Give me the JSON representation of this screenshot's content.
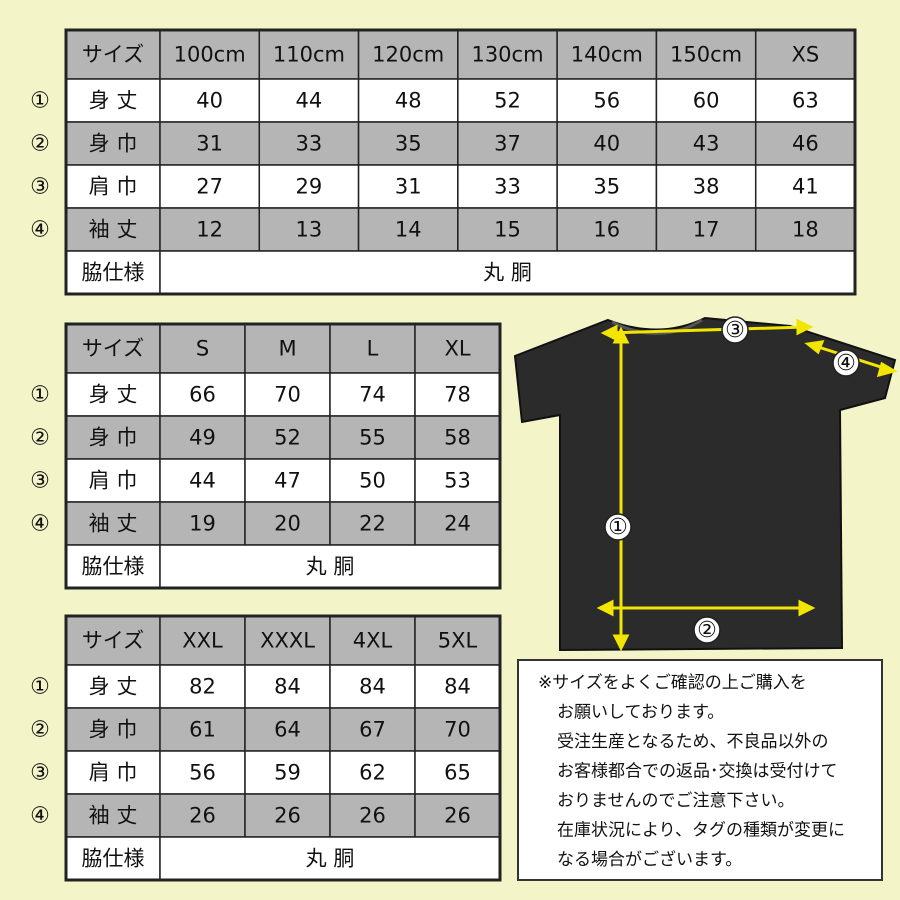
{
  "tables": [
    {
      "header": [
        "サイズ",
        "100cm",
        "110cm",
        "120cm",
        "130cm",
        "140cm",
        "150cm",
        "XS"
      ],
      "rows": [
        {
          "marker": "①",
          "label": "身 丈",
          "values": [
            "40",
            "44",
            "48",
            "52",
            "56",
            "60",
            "63"
          ]
        },
        {
          "marker": "②",
          "label": "身 巾",
          "values": [
            "31",
            "33",
            "35",
            "37",
            "40",
            "43",
            "46"
          ]
        },
        {
          "marker": "③",
          "label": "肩 巾",
          "values": [
            "27",
            "29",
            "31",
            "33",
            "35",
            "38",
            "41"
          ]
        },
        {
          "marker": "④",
          "label": "袖 丈",
          "values": [
            "12",
            "13",
            "14",
            "15",
            "16",
            "17",
            "18"
          ]
        }
      ],
      "footer": {
        "label": "脇仕様",
        "value": "丸 胴"
      }
    },
    {
      "header": [
        "サイズ",
        "S",
        "M",
        "L",
        "XL"
      ],
      "rows": [
        {
          "marker": "①",
          "label": "身 丈",
          "values": [
            "66",
            "70",
            "74",
            "78"
          ]
        },
        {
          "marker": "②",
          "label": "身 巾",
          "values": [
            "49",
            "52",
            "55",
            "58"
          ]
        },
        {
          "marker": "③",
          "label": "肩 巾",
          "values": [
            "44",
            "47",
            "50",
            "53"
          ]
        },
        {
          "marker": "④",
          "label": "袖 丈",
          "values": [
            "19",
            "20",
            "22",
            "24"
          ]
        }
      ],
      "footer": {
        "label": "脇仕様",
        "value": "丸 胴"
      }
    },
    {
      "header": [
        "サイズ",
        "XXL",
        "XXXL",
        "4XL",
        "5XL"
      ],
      "rows": [
        {
          "marker": "①",
          "label": "身 丈",
          "values": [
            "82",
            "84",
            "84",
            "84"
          ]
        },
        {
          "marker": "②",
          "label": "身 巾",
          "values": [
            "61",
            "64",
            "67",
            "70"
          ]
        },
        {
          "marker": "③",
          "label": "肩 巾",
          "values": [
            "56",
            "59",
            "62",
            "65"
          ]
        },
        {
          "marker": "④",
          "label": "袖 丈",
          "values": [
            "26",
            "26",
            "26",
            "26"
          ]
        }
      ],
      "footer": {
        "label": "脇仕様",
        "value": "丸 胴"
      }
    }
  ],
  "diagram": {
    "labels": [
      "③",
      "④",
      "①",
      "②"
    ]
  },
  "notes": [
    "※サイズをよくご確認の上ご購入を",
    "お願いしております。",
    "受注生産となるため、不良品以外の",
    "お客様都合での返品･交換は受付けて",
    "おりませんのでご注意下さい。",
    "在庫状況により、タグの種類が変更に",
    "なる場合がございます。"
  ]
}
